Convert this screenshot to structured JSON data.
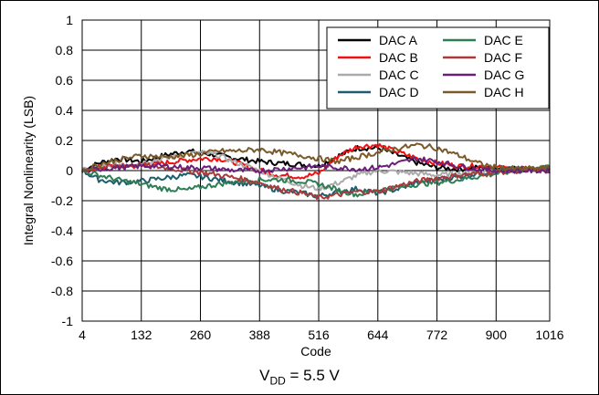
{
  "chart_data": {
    "type": "line",
    "xlabel": "Code",
    "ylabel": "Integral Nonlinearity (LSB)",
    "xlim": [
      4,
      1016
    ],
    "ylim": [
      -1,
      1
    ],
    "x_ticks": [
      4,
      132,
      260,
      388,
      516,
      644,
      772,
      900,
      1016
    ],
    "y_ticks": [
      -1,
      -0.8,
      -0.6,
      -0.4,
      -0.2,
      0,
      0.2,
      0.4,
      0.6,
      0.8,
      1
    ],
    "grid": true,
    "legend_position": "top-right",
    "legend_columns": 2,
    "x": [
      4,
      40,
      80,
      132,
      180,
      230,
      260,
      300,
      340,
      388,
      430,
      480,
      516,
      560,
      600,
      644,
      690,
      730,
      772,
      820,
      860,
      900,
      950,
      1016
    ],
    "series": [
      {
        "name": "DAC A",
        "color": "#000000",
        "values": [
          0,
          0.05,
          0.08,
          0.06,
          0.1,
          0.13,
          0.12,
          0.1,
          0.08,
          0.06,
          0.05,
          0.04,
          0.03,
          0.1,
          0.15,
          0.15,
          0.1,
          0.05,
          0.02,
          0.01,
          0.02,
          0.02,
          0.01,
          0.01
        ]
      },
      {
        "name": "DAC B",
        "color": "#ee1111",
        "values": [
          0,
          0.02,
          0.03,
          0.03,
          0.05,
          0.07,
          0.08,
          0.08,
          0.05,
          0.0,
          -0.03,
          -0.04,
          -0.02,
          0.1,
          0.16,
          0.17,
          0.12,
          0.08,
          0.05,
          0.03,
          0.03,
          0.02,
          0.01,
          0.01
        ]
      },
      {
        "name": "DAC C",
        "color": "#aaaaaa",
        "values": [
          0,
          0.02,
          0.04,
          0.05,
          0.08,
          0.11,
          0.12,
          0.1,
          0.05,
          0.0,
          -0.05,
          -0.1,
          -0.12,
          -0.08,
          -0.03,
          0.0,
          -0.01,
          -0.02,
          -0.03,
          -0.02,
          -0.01,
          0.0,
          0.0,
          0.0
        ]
      },
      {
        "name": "DAC D",
        "color": "#1f5d6e",
        "values": [
          0,
          -0.06,
          -0.08,
          -0.07,
          -0.05,
          -0.03,
          -0.04,
          -0.06,
          -0.08,
          -0.1,
          -0.13,
          -0.15,
          -0.17,
          -0.14,
          -0.12,
          -0.15,
          -0.12,
          -0.08,
          -0.06,
          -0.04,
          -0.02,
          0.0,
          0.01,
          0.02
        ]
      },
      {
        "name": "DAC E",
        "color": "#2e7d54",
        "values": [
          0,
          -0.03,
          -0.06,
          -0.09,
          -0.12,
          -0.13,
          -0.11,
          -0.09,
          -0.07,
          -0.06,
          -0.06,
          -0.07,
          -0.09,
          -0.13,
          -0.16,
          -0.13,
          -0.11,
          -0.09,
          -0.08,
          -0.06,
          -0.04,
          -0.02,
          0.0,
          0.02
        ]
      },
      {
        "name": "DAC F",
        "color": "#a83a3a",
        "values": [
          0,
          0.02,
          0.03,
          0.04,
          0.02,
          0.0,
          -0.01,
          -0.03,
          -0.05,
          -0.08,
          -0.12,
          -0.15,
          -0.18,
          -0.16,
          -0.14,
          -0.14,
          -0.1,
          -0.07,
          -0.05,
          -0.03,
          -0.02,
          -0.01,
          0.0,
          0.0
        ]
      },
      {
        "name": "DAC G",
        "color": "#6a1f78",
        "values": [
          0,
          0.01,
          0.02,
          0.03,
          0.03,
          0.02,
          0.02,
          0.01,
          0.0,
          0.0,
          0.01,
          0.02,
          0.03,
          0.02,
          0.01,
          0.02,
          0.05,
          0.08,
          0.06,
          0.03,
          0.01,
          0.0,
          0.0,
          0.0
        ]
      },
      {
        "name": "DAC H",
        "color": "#7b5a2a",
        "values": [
          0,
          0.04,
          0.07,
          0.1,
          0.09,
          0.1,
          0.11,
          0.13,
          0.13,
          0.14,
          0.12,
          0.1,
          0.08,
          0.06,
          0.09,
          0.12,
          0.15,
          0.17,
          0.15,
          0.1,
          0.05,
          0.02,
          0.01,
          0.02
        ]
      }
    ]
  },
  "caption": {
    "main": "V",
    "sub": "DD",
    "rest": " = 5.5 V"
  }
}
